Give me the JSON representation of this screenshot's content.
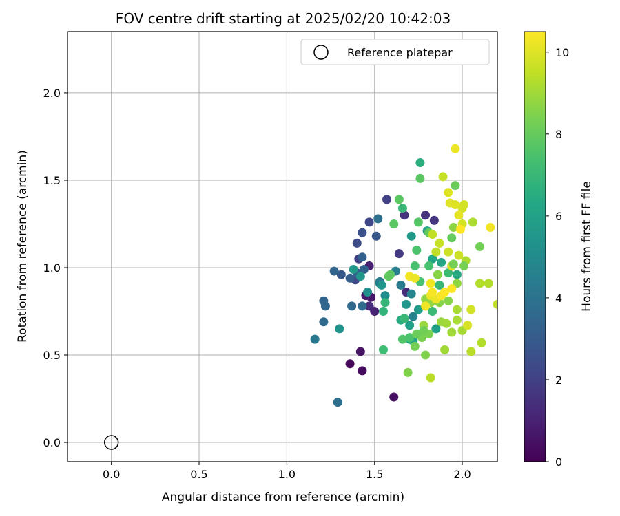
{
  "chart_data": {
    "type": "scatter",
    "title": "FOV centre drift starting at 2025/02/20 10:42:03",
    "xlabel": "Angular distance from reference (arcmin)",
    "ylabel": "Rotation from reference (arcmin)",
    "xlim": [
      -0.25,
      2.2
    ],
    "ylim": [
      -0.11,
      2.35
    ],
    "x_ticks": [
      0.0,
      0.5,
      1.0,
      1.5,
      2.0
    ],
    "x_tick_labels": [
      "0.0",
      "0.5",
      "1.0",
      "1.5",
      "2.0"
    ],
    "y_ticks": [
      0.0,
      0.5,
      1.0,
      1.5,
      2.0
    ],
    "y_tick_labels": [
      "0.0",
      "0.5",
      "1.0",
      "1.5",
      "2.0"
    ],
    "grid": true,
    "legend": {
      "position": "top-right",
      "entries": [
        "Reference platepar"
      ]
    },
    "reference_point": {
      "x": 0.0,
      "y": 0.0,
      "label": "Reference platepar"
    },
    "colorbar": {
      "label": "Hours from first FF file",
      "range": [
        0,
        10.5
      ],
      "ticks": [
        0,
        2,
        4,
        6,
        8,
        10
      ],
      "tick_labels": [
        "0",
        "2",
        "4",
        "6",
        "8",
        "10"
      ],
      "colormap": "viridis"
    },
    "series": [
      {
        "points": [
          [
            1.36,
            0.45,
            0.2
          ],
          [
            1.43,
            0.41,
            0.3
          ],
          [
            1.42,
            0.52,
            0.5
          ],
          [
            1.61,
            0.26,
            0.4
          ],
          [
            1.48,
            0.83,
            0.6
          ],
          [
            1.45,
            0.84,
            0.8
          ],
          [
            1.47,
            1.01,
            0.9
          ],
          [
            1.5,
            0.75,
            1.0
          ],
          [
            1.47,
            0.78,
            1.3
          ],
          [
            1.68,
            0.86,
            1.3
          ],
          [
            1.67,
            1.3,
            1.5
          ],
          [
            1.64,
            1.08,
            1.8
          ],
          [
            1.79,
            1.3,
            1.5
          ],
          [
            1.84,
            1.27,
            1.6
          ],
          [
            1.57,
            1.39,
            2.0
          ],
          [
            1.47,
            1.26,
            2.2
          ],
          [
            1.4,
            1.14,
            2.4
          ],
          [
            1.39,
            0.93,
            2.3
          ],
          [
            1.41,
            1.05,
            2.0
          ],
          [
            1.43,
            1.2,
            2.6
          ],
          [
            1.51,
            1.18,
            2.8
          ],
          [
            1.31,
            0.96,
            2.9
          ],
          [
            1.36,
            0.94,
            3.1
          ],
          [
            1.4,
            0.97,
            3.0
          ],
          [
            1.43,
            1.06,
            3.2
          ],
          [
            1.44,
            0.99,
            3.3
          ],
          [
            1.27,
            0.98,
            3.4
          ],
          [
            1.21,
            0.81,
            3.4
          ],
          [
            1.22,
            0.78,
            3.5
          ],
          [
            1.21,
            0.69,
            3.6
          ],
          [
            1.37,
            0.78,
            3.6
          ],
          [
            1.43,
            0.78,
            3.6
          ],
          [
            1.52,
            1.28,
            3.9
          ],
          [
            1.29,
            0.23,
            3.8
          ],
          [
            1.16,
            0.59,
            4.2
          ],
          [
            1.53,
            0.91,
            4.3
          ],
          [
            1.53,
            0.92,
            4.4
          ],
          [
            1.65,
            0.9,
            4.4
          ],
          [
            1.71,
            0.85,
            4.8
          ],
          [
            1.62,
            0.98,
            4.5
          ],
          [
            1.72,
            0.72,
            4.6
          ],
          [
            1.3,
            0.65,
            5.3
          ],
          [
            1.46,
            0.86,
            5.2
          ],
          [
            1.56,
            0.84,
            5.1
          ],
          [
            1.38,
            0.99,
            5.6
          ],
          [
            1.42,
            0.95,
            5.5
          ],
          [
            1.54,
            0.9,
            5.4
          ],
          [
            1.71,
            1.18,
            5.6
          ],
          [
            1.68,
            0.79,
            5.5
          ],
          [
            1.7,
            0.67,
            5.9
          ],
          [
            1.75,
            0.76,
            5.7
          ],
          [
            1.8,
            1.21,
            6.0
          ],
          [
            1.83,
            1.05,
            6.3
          ],
          [
            1.88,
            1.03,
            6.2
          ],
          [
            1.85,
            0.65,
            5.9
          ],
          [
            1.72,
            0.58,
            6.0
          ],
          [
            1.94,
            1.01,
            6.1
          ],
          [
            1.97,
            0.96,
            6.4
          ],
          [
            1.7,
            0.59,
            6.5
          ],
          [
            1.65,
            0.7,
            6.5
          ],
          [
            1.76,
            1.6,
            6.6
          ],
          [
            1.55,
            0.75,
            6.8
          ],
          [
            1.56,
            0.8,
            6.9
          ],
          [
            1.66,
            1.34,
            7.0
          ],
          [
            1.67,
            0.71,
            7.0
          ],
          [
            1.87,
            0.9,
            7.0
          ],
          [
            1.83,
            0.75,
            7.1
          ],
          [
            1.86,
            0.81,
            7.3
          ],
          [
            1.92,
            0.97,
            7.1
          ],
          [
            1.76,
            0.92,
            7.4
          ],
          [
            1.55,
            0.53,
            7.2
          ],
          [
            1.73,
            1.01,
            7.4
          ],
          [
            1.74,
            1.1,
            7.5
          ],
          [
            1.81,
            1.01,
            7.4
          ],
          [
            1.66,
            0.59,
            7.6
          ],
          [
            1.7,
            0.6,
            7.5
          ],
          [
            1.75,
            1.26,
            7.7
          ],
          [
            1.61,
            1.25,
            7.8
          ],
          [
            1.64,
            1.39,
            7.8
          ],
          [
            1.76,
            1.51,
            7.8
          ],
          [
            1.58,
            0.95,
            7.9
          ],
          [
            1.59,
            0.96,
            7.9
          ],
          [
            1.81,
            1.2,
            8.0
          ],
          [
            1.94,
            1.17,
            8.0
          ],
          [
            1.96,
            1.47,
            8.1
          ],
          [
            2.1,
            1.12,
            8.2
          ],
          [
            1.73,
            0.55,
            8.3
          ],
          [
            1.77,
            0.6,
            8.4
          ],
          [
            1.81,
            0.62,
            8.4
          ],
          [
            1.79,
            0.5,
            8.5
          ],
          [
            1.69,
            0.4,
            8.5
          ],
          [
            1.87,
            0.8,
            8.6
          ],
          [
            1.86,
            0.96,
            8.6
          ],
          [
            1.92,
            0.81,
            8.6
          ],
          [
            1.95,
            1.23,
            8.7
          ],
          [
            1.97,
            0.91,
            8.7
          ],
          [
            1.79,
            0.82,
            8.8
          ],
          [
            1.82,
            0.8,
            8.8
          ],
          [
            1.78,
            0.67,
            8.9
          ],
          [
            1.88,
            0.69,
            8.9
          ],
          [
            1.91,
            0.68,
            9.0
          ],
          [
            1.9,
            0.53,
            9.0
          ],
          [
            1.94,
            0.63,
            9.0
          ],
          [
            1.97,
            0.7,
            9.1
          ],
          [
            1.97,
            0.76,
            9.1
          ],
          [
            2.0,
            0.64,
            9.1
          ],
          [
            2.02,
            1.04,
            9.2
          ],
          [
            2.06,
            1.26,
            9.2
          ],
          [
            2.11,
            0.57,
            9.3
          ],
          [
            2.15,
            0.91,
            9.3
          ],
          [
            2.1,
            0.91,
            9.3
          ],
          [
            2.05,
            0.52,
            9.4
          ],
          [
            1.82,
            0.37,
            9.4
          ],
          [
            1.83,
            1.19,
            9.5
          ],
          [
            1.85,
            1.09,
            9.5
          ],
          [
            1.87,
            1.14,
            9.6
          ],
          [
            1.89,
            1.52,
            9.6
          ],
          [
            1.92,
            1.09,
            9.7
          ],
          [
            1.98,
            1.07,
            9.7
          ],
          [
            2.0,
            1.25,
            9.8
          ],
          [
            2.0,
            1.34,
            9.8
          ],
          [
            2.01,
            1.36,
            9.8
          ],
          [
            2.05,
            0.76,
            9.8
          ],
          [
            2.03,
            0.67,
            9.9
          ],
          [
            1.94,
            1.01,
            9.9
          ],
          [
            1.92,
            1.43,
            10.0
          ],
          [
            1.93,
            1.37,
            10.0
          ],
          [
            1.96,
            1.36,
            10.0
          ],
          [
            1.98,
            1.3,
            10.1
          ],
          [
            1.96,
            1.68,
            10.2
          ],
          [
            1.82,
            0.84,
            10.2
          ],
          [
            1.85,
            0.82,
            10.2
          ],
          [
            1.7,
            0.95,
            10.3
          ],
          [
            1.73,
            0.94,
            10.2
          ],
          [
            1.82,
            0.91,
            10.3
          ],
          [
            1.83,
            0.86,
            10.4
          ],
          [
            1.88,
            0.84,
            10.4
          ],
          [
            1.9,
            0.86,
            10.5
          ],
          [
            1.94,
            0.88,
            10.5
          ],
          [
            1.99,
            1.22,
            10.5
          ],
          [
            2.16,
            1.23,
            10.3
          ],
          [
            1.79,
            0.78,
            10.3
          ],
          [
            1.74,
            0.62,
            8.1
          ],
          [
            1.78,
            0.64,
            8.2
          ],
          [
            1.95,
            1.02,
            8.3
          ],
          [
            2.01,
            1.01,
            8.3
          ],
          [
            2.2,
            0.79,
            9.5
          ]
        ]
      }
    ]
  }
}
